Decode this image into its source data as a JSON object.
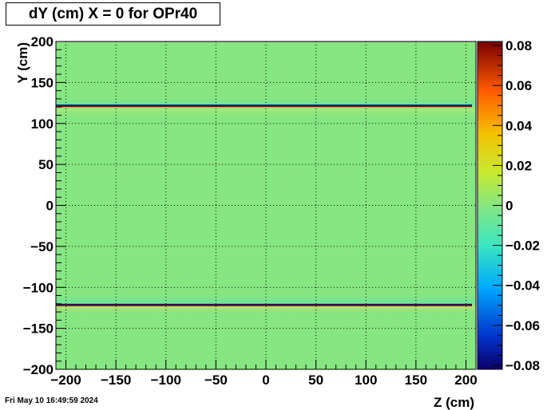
{
  "title": "dY (cm) X = 0 for OPr40",
  "timestamp": "Fri May 10 16:49:59 2024",
  "chart_data": {
    "type": "heatmap",
    "title": "dY (cm) X = 0 for OPr40",
    "xlabel": "Z (cm)",
    "ylabel": "Y (cm)",
    "xlim": [
      -210,
      210
    ],
    "ylim": [
      -200,
      200
    ],
    "x_ticks": [
      -200,
      -150,
      -100,
      -50,
      0,
      50,
      100,
      150,
      200
    ],
    "x_tick_labels": [
      "−200",
      "−150",
      "−100",
      "−50",
      "0",
      "50",
      "100",
      "150",
      "200"
    ],
    "y_ticks": [
      -200,
      -150,
      -100,
      -50,
      0,
      50,
      100,
      150,
      200
    ],
    "y_tick_labels": [
      "−200",
      "−150",
      "−100",
      "−50",
      "0",
      "50",
      "100",
      "150",
      "200"
    ],
    "grid": true,
    "background_value": 0.0,
    "bands": [
      {
        "y": 122,
        "value": -0.08
      },
      {
        "y": 121,
        "value": 0.08
      },
      {
        "y": -121,
        "value": -0.08
      },
      {
        "y": -122,
        "value": 0.08
      }
    ],
    "colorbar": {
      "zlim": [
        -0.082,
        0.082
      ],
      "ticks": [
        0.08,
        0.06,
        0.04,
        0.02,
        0,
        -0.02,
        -0.04,
        -0.06,
        -0.08
      ],
      "tick_labels": [
        "0.08",
        "0.06",
        "0.04",
        "0.02",
        "0",
        "−0.02",
        "−0.04",
        "−0.06",
        "−0.08"
      ]
    }
  }
}
